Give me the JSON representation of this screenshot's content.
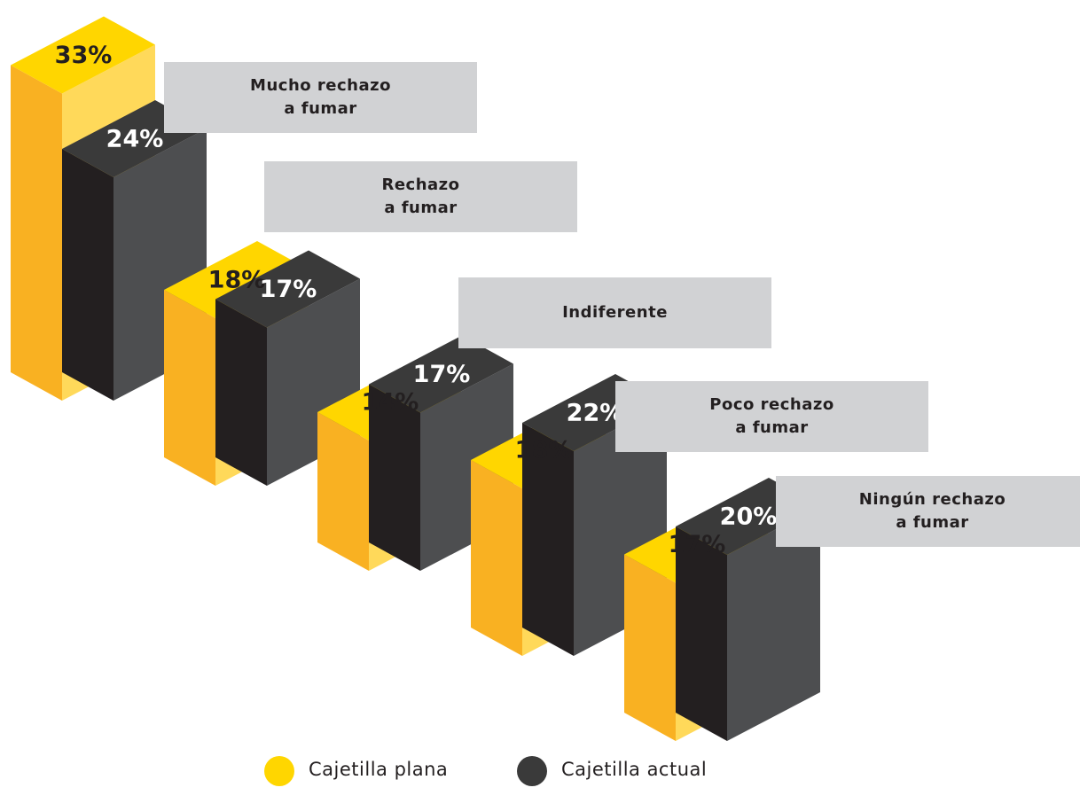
{
  "chart_data": {
    "type": "bar3d",
    "categories": [
      "Mucho rechazo\na fumar",
      "Rechazo\na fumar",
      "Indiferente",
      "Poco rechazo\na fumar",
      "Ningún rechazo\na fumar"
    ],
    "series": [
      {
        "name": "Cajetilla plana",
        "color": "#ffd600",
        "values": [
          33,
          18,
          14,
          18,
          17
        ],
        "value_labels": [
          "33%",
          "18%",
          "14%",
          "18%",
          "17%"
        ]
      },
      {
        "name": "Cajetilla actual",
        "color": "#3a3a3a",
        "values": [
          24,
          17,
          17,
          22,
          20
        ],
        "value_labels": [
          "24%",
          "17%",
          "17%",
          "22%",
          "20%"
        ]
      }
    ]
  }
}
